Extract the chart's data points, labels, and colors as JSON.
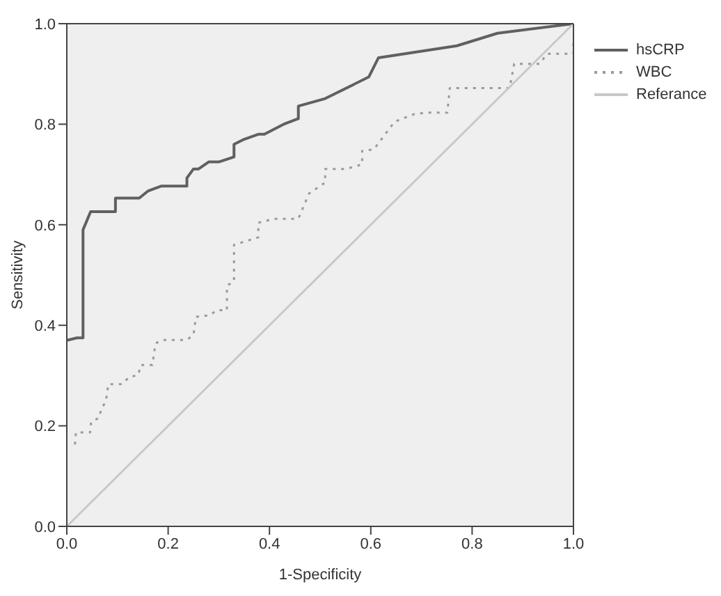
{
  "chart_data": {
    "type": "line",
    "xlabel": "1-Specificity",
    "ylabel": "Sensitivity",
    "xlim": [
      0,
      1
    ],
    "ylim": [
      0,
      1
    ],
    "xticks": [
      {
        "value": 0,
        "label": "0.0"
      },
      0.2,
      0.4,
      0.6,
      0.8,
      {
        "value": 1,
        "label": "1.0"
      }
    ],
    "yticks": [
      {
        "value": 0,
        "label": "0.0"
      },
      0.2,
      0.4,
      0.6,
      0.8,
      {
        "value": 1,
        "label": "1.0"
      }
    ],
    "legend": "right",
    "marker": "none",
    "grid": false,
    "series": [
      {
        "name": "hsCRP",
        "color": "#606060",
        "line_style": "solid",
        "x": [
          0,
          0.02,
          0.032,
          0.032,
          0.047,
          0.096,
          0.096,
          0.143,
          0.16,
          0.187,
          0.237,
          0.237,
          0.25,
          0.26,
          0.28,
          0.3,
          0.33,
          0.33,
          0.35,
          0.378,
          0.39,
          0.428,
          0.457,
          0.457,
          0.51,
          0.596,
          0.615,
          0.77,
          0.85,
          1
        ],
        "values": [
          0.37,
          0.375,
          0.375,
          0.59,
          0.626,
          0.626,
          0.653,
          0.653,
          0.667,
          0.677,
          0.677,
          0.693,
          0.711,
          0.711,
          0.725,
          0.725,
          0.735,
          0.76,
          0.77,
          0.78,
          0.78,
          0.8,
          0.811,
          0.836,
          0.851,
          0.894,
          0.932,
          0.956,
          0.981,
          1
        ]
      },
      {
        "name": "WBC",
        "color": "#9a9a9a",
        "line_style": "dotted",
        "x": [
          0.016,
          0.018,
          0.046,
          0.048,
          0.064,
          0.068,
          0.077,
          0.082,
          0.109,
          0.123,
          0.141,
          0.146,
          0.169,
          0.175,
          0.189,
          0.237,
          0.25,
          0.255,
          0.282,
          0.296,
          0.316,
          0.316,
          0.33,
          0.33,
          0.346,
          0.378,
          0.378,
          0.41,
          0.457,
          0.478,
          0.51,
          0.51,
          0.551,
          0.583,
          0.583,
          0.606,
          0.647,
          0.688,
          0.715,
          0.751,
          0.756,
          0.874,
          0.883,
          0.934,
          0.947,
          1,
          1
        ],
        "values": [
          0.163,
          0.187,
          0.187,
          0.208,
          0.216,
          0.234,
          0.248,
          0.283,
          0.283,
          0.297,
          0.301,
          0.321,
          0.321,
          0.364,
          0.371,
          0.371,
          0.381,
          0.417,
          0.42,
          0.43,
          0.43,
          0.479,
          0.487,
          0.56,
          0.565,
          0.575,
          0.604,
          0.612,
          0.612,
          0.662,
          0.684,
          0.711,
          0.711,
          0.72,
          0.747,
          0.75,
          0.805,
          0.821,
          0.823,
          0.823,
          0.872,
          0.872,
          0.92,
          0.92,
          0.94,
          0.94,
          0.97
        ]
      },
      {
        "name": "Referance",
        "color": "#c8c8c8",
        "line_style": "solid",
        "x": [
          0,
          1
        ],
        "values": [
          0,
          1
        ]
      }
    ]
  }
}
